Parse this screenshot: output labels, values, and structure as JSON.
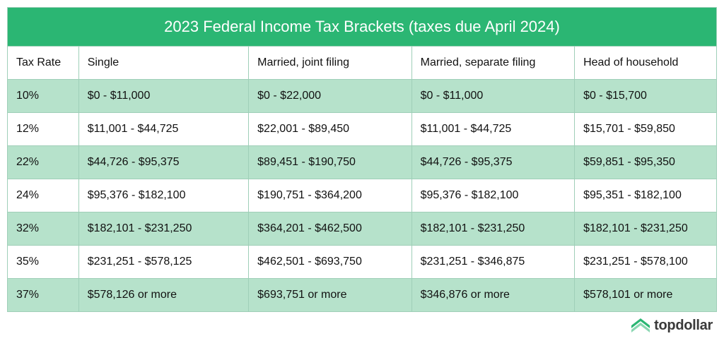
{
  "title": "2023 Federal Income Tax Brackets (taxes due April 2024)",
  "colors": {
    "header_bg": "#2bb673",
    "header_text": "#ffffff",
    "row_alt_bg": "#b6e2cb",
    "row_bg": "#ffffff",
    "border": "#9fcfb8",
    "text": "#111111",
    "logo_green": "#2bb673",
    "logo_text": "#3a3a3a"
  },
  "columns": [
    "Tax Rate",
    "Single",
    "Married, joint filing",
    "Married, separate filing",
    "Head of household"
  ],
  "rows": [
    [
      "10%",
      "$0 - $11,000",
      "$0 - $22,000",
      "$0 - $11,000",
      "$0 - $15,700"
    ],
    [
      "12%",
      "$11,001 - $44,725",
      "$22,001 - $89,450",
      "$11,001 - $44,725",
      "$15,701 - $59,850"
    ],
    [
      "22%",
      "$44,726 - $95,375",
      "$89,451 - $190,750",
      "$44,726 - $95,375",
      "$59,851 - $95,350"
    ],
    [
      "24%",
      "$95,376 - $182,100",
      "$190,751 - $364,200",
      "$95,376 - $182,100",
      "$95,351 - $182,100"
    ],
    [
      "32%",
      "$182,101 - $231,250",
      "$364,201 - $462,500",
      "$182,101 - $231,250",
      "$182,101 - $231,250"
    ],
    [
      "35%",
      "$231,251 - $578,125",
      "$462,501 - $693,750",
      "$231,251 - $346,875",
      "$231,251 - $578,100"
    ],
    [
      "37%",
      "$578,126 or more",
      "$693,751 or more",
      "$346,876 or more",
      "$578,101 or more"
    ]
  ],
  "footer": {
    "brand": "topdollar"
  }
}
